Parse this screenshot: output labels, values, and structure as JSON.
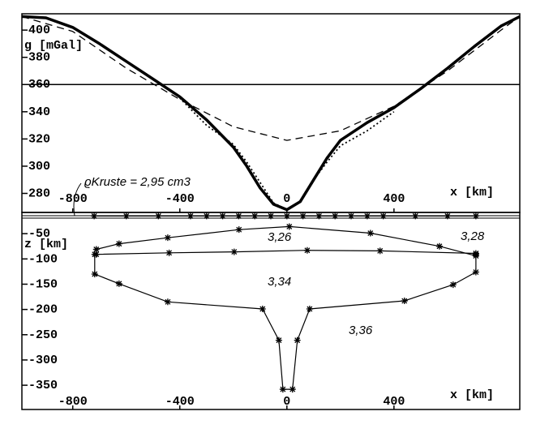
{
  "chart_data": [
    {
      "type": "line",
      "ylabel": "g [mGal]",
      "xlabel": "x [km]",
      "annotation": "ϱKruste = 2,95 cm3",
      "xlim": [
        -990,
        870
      ],
      "xticks": [
        -800,
        -400,
        0,
        400
      ],
      "ylim": [
        266,
        412
      ],
      "yticks": [
        280,
        300,
        320,
        340,
        360,
        380,
        400
      ],
      "reference_line": 360,
      "color": "#000000",
      "series": [
        {
          "style": "solid",
          "x": [
            -990,
            -900,
            -800,
            -700,
            -600,
            -500,
            -400,
            -300,
            -200,
            -150,
            -100,
            -50,
            0,
            50,
            100,
            150,
            200,
            300,
            400,
            500,
            600,
            700,
            800,
            870
          ],
          "values": [
            410,
            409,
            402,
            390,
            377,
            364,
            351,
            334,
            314,
            300,
            284,
            272,
            268,
            274,
            290,
            306,
            319,
            332,
            343,
            357,
            372,
            388,
            403,
            410
          ]
        },
        {
          "style": "dashed",
          "x": [
            -990,
            -800,
            -600,
            -400,
            -200,
            0,
            200,
            400,
            600,
            800,
            870
          ],
          "values": [
            410,
            399,
            372,
            349,
            329,
            319,
            326,
            344,
            370,
            400,
            410
          ]
        },
        {
          "style": "dotted",
          "x": [
            -400,
            -300,
            -200,
            -150,
            -100,
            -50,
            0,
            50,
            100,
            150,
            200,
            300,
            400
          ],
          "values": [
            350,
            330,
            316,
            303,
            288,
            273,
            268,
            274,
            290,
            303,
            315,
            326,
            340
          ]
        }
      ]
    },
    {
      "type": "model",
      "ylabel": "z [km]",
      "xlabel": "x [km]",
      "xlim": [
        -990,
        870
      ],
      "xticks": [
        -800,
        -400,
        0,
        400
      ],
      "ylim": [
        -398,
        -8
      ],
      "yticks": [
        -50,
        -100,
        -150,
        -200,
        -250,
        -300,
        -350
      ],
      "color": "#000000",
      "region_labels": [
        "3,26",
        "3,28",
        "3,34",
        "3,36"
      ],
      "series": [
        {
          "x": [
            -720,
            -600,
            -480,
            -360,
            -300,
            -240,
            -180,
            -120,
            -60,
            0,
            60,
            120,
            180,
            240,
            300,
            360,
            480,
            600,
            706
          ],
          "values": [
            -15,
            -15,
            -15,
            -15,
            -15,
            -15,
            -15,
            -15,
            -15,
            -15,
            -15,
            -15,
            -15,
            -15,
            -15,
            -15,
            -15,
            -15,
            -15
          ]
        },
        {
          "x": [
            -712,
            -627,
            -445,
            -179,
            9,
            312,
            570,
            706
          ],
          "values": [
            -81,
            -70,
            -58,
            -42,
            -36,
            -49,
            -75,
            -94
          ]
        },
        {
          "x": [
            -712,
            -440,
            -197,
            76,
            348,
            706
          ],
          "values": [
            -91,
            -88,
            -86,
            -83,
            -84,
            -89
          ]
        },
        {
          "x": [
            -718,
            -718,
            -627,
            -445,
            -91,
            -30,
            -15,
            21,
            39,
            85,
            439,
            621,
            706,
            706
          ],
          "values": [
            -91,
            -130,
            -149,
            -185,
            -199,
            -261,
            -358,
            -358,
            -261,
            -199,
            -183,
            -151,
            -126,
            -91
          ]
        }
      ]
    }
  ]
}
